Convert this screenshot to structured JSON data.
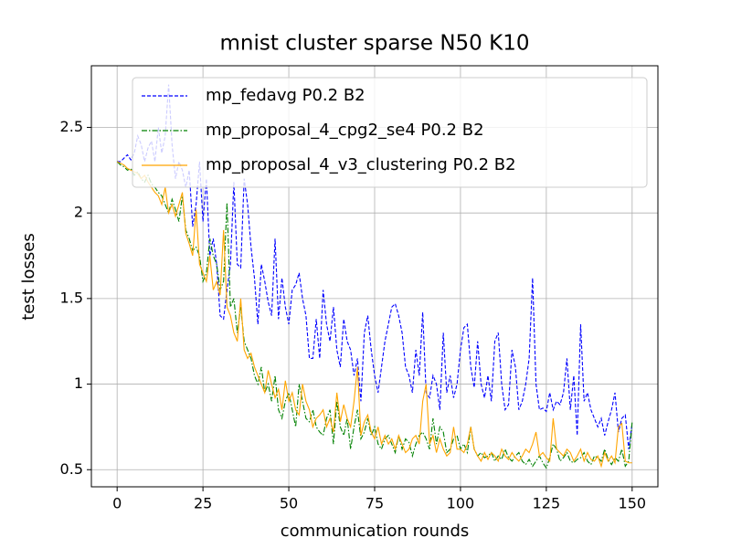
{
  "chart_data": {
    "type": "line",
    "title": "mnist cluster sparse N50 K10",
    "x_label": "communication rounds",
    "y_label": "test losses",
    "xlim": [
      -7.5,
      157.5
    ],
    "ylim": [
      0.4,
      2.86
    ],
    "xticks": [
      0,
      25,
      50,
      75,
      100,
      125,
      150
    ],
    "yticks": [
      0.5,
      1.0,
      1.5,
      2.0,
      2.5
    ],
    "grid": true,
    "legend_loc": "upper right",
    "x": [
      0,
      1,
      2,
      3,
      4,
      5,
      6,
      7,
      8,
      9,
      10,
      11,
      12,
      13,
      14,
      15,
      16,
      17,
      18,
      19,
      20,
      21,
      22,
      23,
      24,
      25,
      26,
      27,
      28,
      29,
      30,
      31,
      32,
      33,
      34,
      35,
      36,
      37,
      38,
      39,
      40,
      41,
      42,
      43,
      44,
      45,
      46,
      47,
      48,
      49,
      50,
      51,
      52,
      53,
      54,
      55,
      56,
      57,
      58,
      59,
      60,
      61,
      62,
      63,
      64,
      65,
      66,
      67,
      68,
      69,
      70,
      71,
      72,
      73,
      74,
      75,
      76,
      77,
      78,
      79,
      80,
      81,
      82,
      83,
      84,
      85,
      86,
      87,
      88,
      89,
      90,
      91,
      92,
      93,
      94,
      95,
      96,
      97,
      98,
      99,
      100,
      101,
      102,
      103,
      104,
      105,
      106,
      107,
      108,
      109,
      110,
      111,
      112,
      113,
      114,
      115,
      116,
      117,
      118,
      119,
      120,
      121,
      122,
      123,
      124,
      125,
      126,
      127,
      128,
      129,
      130,
      131,
      132,
      133,
      134,
      135,
      136,
      137,
      138,
      139,
      140,
      141,
      142,
      143,
      144,
      145,
      146,
      147,
      148,
      149,
      150
    ],
    "series": [
      {
        "name": "mp_fedavg P0.2 B2",
        "color": "#0000ff",
        "linestyle": "dashed",
        "values": [
          2.3,
          2.3,
          2.32,
          2.34,
          2.31,
          2.35,
          2.45,
          2.4,
          2.3,
          2.38,
          2.42,
          2.3,
          2.5,
          2.35,
          2.45,
          2.75,
          2.4,
          2.2,
          2.3,
          2.25,
          2.15,
          2.25,
          1.92,
          2.05,
          2.3,
          1.95,
          2.2,
          1.75,
          1.85,
          1.7,
          1.4,
          1.38,
          1.55,
          1.7,
          2.18,
          1.7,
          1.68,
          2.2,
          2.05,
          1.8,
          1.62,
          1.35,
          1.7,
          1.6,
          1.48,
          1.4,
          1.85,
          1.38,
          1.62,
          1.45,
          1.35,
          1.55,
          1.58,
          1.65,
          1.5,
          1.4,
          1.15,
          1.15,
          1.38,
          1.15,
          1.55,
          1.35,
          1.25,
          1.45,
          1.2,
          1.1,
          1.38,
          1.25,
          1.2,
          1.05,
          1.15,
          0.9,
          1.3,
          1.4,
          1.2,
          1.05,
          0.95,
          1.1,
          1.25,
          1.35,
          1.45,
          1.47,
          1.4,
          1.3,
          1.1,
          1.05,
          0.95,
          1.2,
          1.05,
          1.42,
          0.95,
          0.92,
          1.05,
          1.0,
          0.85,
          1.3,
          0.95,
          1.05,
          0.92,
          1.0,
          1.2,
          1.33,
          1.35,
          1.1,
          0.98,
          1.25,
          1.0,
          0.92,
          1.05,
          0.9,
          1.25,
          1.3,
          1.0,
          0.85,
          0.88,
          1.2,
          1.1,
          0.85,
          0.9,
          1.0,
          1.15,
          1.62,
          1.0,
          0.85,
          0.86,
          0.84,
          0.95,
          0.85,
          0.9,
          0.88,
          0.95,
          1.15,
          0.85,
          1.05,
          0.7,
          1.35,
          0.9,
          0.95,
          0.85,
          0.8,
          0.75,
          0.8,
          0.7,
          0.78,
          0.85,
          0.95,
          0.72,
          0.8,
          0.82,
          0.62,
          0.77
        ]
      },
      {
        "name": "mp_proposal_4_cpg2_se4 P0.2 B2",
        "color": "#008000",
        "linestyle": "dashdot",
        "values": [
          2.3,
          2.28,
          2.27,
          2.25,
          2.26,
          2.22,
          2.24,
          2.2,
          2.18,
          2.22,
          2.17,
          2.15,
          2.12,
          2.1,
          2.05,
          2.0,
          2.08,
          2.02,
          1.95,
          2.1,
          1.9,
          1.85,
          1.78,
          1.8,
          1.75,
          1.6,
          1.65,
          1.85,
          1.75,
          1.7,
          1.55,
          1.6,
          2.06,
          1.45,
          1.5,
          1.3,
          1.45,
          1.25,
          1.2,
          1.15,
          1.05,
          1.0,
          1.1,
          0.95,
          1.0,
          0.9,
          1.05,
          0.85,
          0.8,
          0.9,
          0.95,
          0.85,
          0.75,
          1.0,
          0.9,
          0.8,
          0.78,
          0.85,
          0.75,
          0.72,
          0.7,
          0.8,
          0.85,
          0.65,
          0.9,
          0.75,
          0.7,
          0.8,
          0.62,
          0.75,
          0.85,
          0.68,
          0.72,
          0.8,
          0.7,
          0.75,
          0.65,
          0.62,
          0.68,
          0.7,
          0.65,
          0.6,
          0.7,
          0.62,
          0.68,
          0.66,
          0.58,
          0.65,
          0.7,
          0.72,
          0.68,
          0.62,
          0.8,
          0.65,
          0.75,
          0.72,
          0.6,
          0.62,
          0.68,
          0.7,
          0.62,
          0.65,
          0.6,
          0.75,
          0.62,
          0.58,
          0.6,
          0.57,
          0.58,
          0.6,
          0.55,
          0.58,
          0.56,
          0.62,
          0.57,
          0.55,
          0.58,
          0.6,
          0.55,
          0.53,
          0.56,
          0.52,
          0.55,
          0.58,
          0.54,
          0.51,
          0.57,
          0.65,
          0.62,
          0.55,
          0.57,
          0.6,
          0.55,
          0.54,
          0.56,
          0.57,
          0.6,
          0.55,
          0.53,
          0.58,
          0.57,
          0.55,
          0.62,
          0.56,
          0.53,
          0.57,
          0.55,
          0.62,
          0.52,
          0.55,
          0.78
        ]
      },
      {
        "name": "mp_proposal_4_v3_clustering P0.2 B2",
        "color": "#ffa500",
        "linestyle": "solid",
        "values": [
          2.3,
          2.29,
          2.28,
          2.26,
          2.25,
          2.24,
          2.23,
          2.2,
          2.22,
          2.18,
          2.15,
          2.12,
          2.1,
          2.05,
          2.15,
          2.0,
          2.05,
          1.98,
          2.05,
          2.12,
          1.88,
          1.82,
          1.75,
          2.02,
          1.7,
          1.65,
          1.6,
          1.75,
          1.55,
          1.6,
          1.52,
          1.9,
          1.45,
          1.4,
          1.3,
          1.25,
          1.5,
          1.2,
          1.15,
          1.18,
          1.1,
          1.05,
          1.0,
          0.95,
          1.08,
          1.0,
          0.92,
          0.97,
          0.85,
          1.02,
          0.9,
          0.95,
          0.85,
          0.82,
          1.0,
          0.9,
          0.85,
          0.75,
          0.8,
          0.82,
          0.85,
          0.75,
          0.8,
          0.72,
          0.95,
          0.78,
          0.88,
          0.8,
          0.75,
          0.9,
          1.1,
          0.7,
          0.78,
          0.82,
          0.72,
          0.68,
          0.75,
          0.65,
          0.7,
          0.65,
          0.68,
          0.62,
          0.7,
          0.65,
          0.6,
          0.62,
          0.68,
          0.7,
          0.65,
          0.9,
          1.0,
          0.65,
          0.7,
          0.6,
          0.68,
          0.62,
          0.58,
          0.6,
          0.75,
          0.62,
          0.62,
          0.6,
          0.65,
          0.75,
          0.62,
          0.58,
          0.55,
          0.6,
          0.56,
          0.6,
          0.58,
          0.55,
          0.62,
          0.58,
          0.56,
          0.6,
          0.57,
          0.55,
          0.58,
          0.62,
          0.6,
          0.65,
          0.72,
          0.58,
          0.6,
          0.57,
          0.55,
          0.8,
          0.62,
          0.6,
          0.58,
          0.62,
          0.6,
          0.55,
          0.58,
          0.62,
          0.55,
          0.6,
          0.56,
          0.55,
          0.58,
          0.52,
          0.6,
          0.55,
          0.58,
          0.54,
          0.75,
          0.77,
          0.55,
          0.54,
          0.54
        ]
      }
    ]
  }
}
